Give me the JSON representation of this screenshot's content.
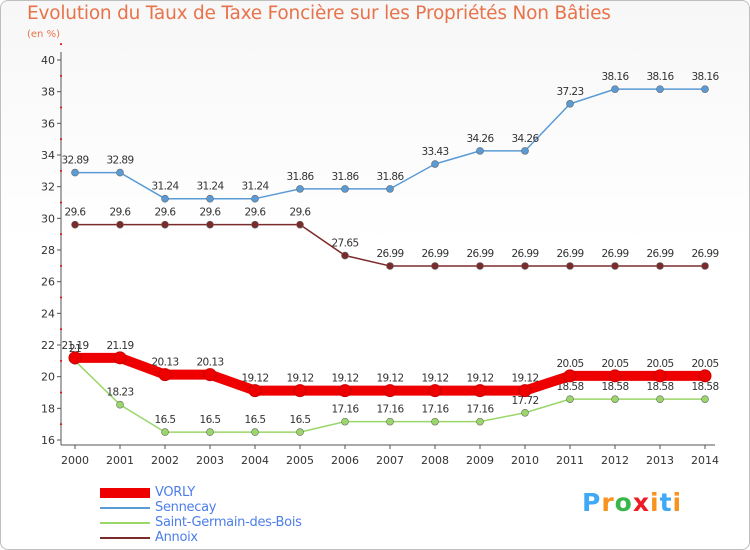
{
  "header": {
    "title": "Evolution du Taux de Taxe Foncière sur les Propriétés Non Bâties",
    "subtitle": "(en %)"
  },
  "logo": {
    "letters": [
      "P",
      "r",
      "o",
      "x",
      "i",
      "t",
      "i"
    ],
    "colors": [
      "#3fa9f5",
      "#f7931e",
      "#39b54a",
      "#ed1c24",
      "#f7931e",
      "#3fa9f5",
      "#f7931e"
    ]
  },
  "chart_data": {
    "type": "line",
    "title": "Evolution du Taux de Taxe Foncière sur les Propriétés Non Bâties",
    "ylabel": "(en %)",
    "xlabel": "",
    "x": [
      "2000",
      "2001",
      "2002",
      "2003",
      "2004",
      "2005",
      "2006",
      "2007",
      "2008",
      "2009",
      "2010",
      "2011",
      "2012",
      "2013",
      "2014"
    ],
    "ylim": [
      16,
      40
    ],
    "yticks": [
      "16",
      "18",
      "20",
      "22",
      "24",
      "26",
      "28",
      "30",
      "32",
      "34",
      "36",
      "38",
      "40"
    ],
    "grid": false,
    "legend_position": "bottom-left",
    "series": [
      {
        "name": "Sennecay",
        "color": "#5b9bd5",
        "values": [
          32.89,
          32.89,
          31.24,
          31.24,
          31.24,
          31.86,
          31.86,
          31.86,
          33.43,
          34.26,
          34.26,
          37.23,
          38.16,
          38.16,
          38.16
        ],
        "labels": [
          "32.89",
          "32.89",
          "31.24",
          "31.24",
          "31.24",
          "31.86",
          "31.86",
          "31.86",
          "33.43",
          "34.26",
          "34.26",
          "37.23",
          "38.16",
          "38.16",
          "38.16"
        ]
      },
      {
        "name": "Annoix",
        "color": "#7b2b2b",
        "values": [
          29.6,
          29.6,
          29.6,
          29.6,
          29.6,
          29.6,
          27.65,
          26.99,
          26.99,
          26.99,
          26.99,
          26.99,
          26.99,
          26.99,
          26.99
        ],
        "labels": [
          "29.6",
          "29.6",
          "29.6",
          "29.6",
          "29.6",
          "29.6",
          "27.65",
          "26.99",
          "26.99",
          "26.99",
          "26.99",
          "26.99",
          "26.99",
          "26.99",
          "26.99"
        ]
      },
      {
        "name": "Saint-Germain-des-Bois",
        "color": "#9ad66a",
        "values": [
          21,
          18.23,
          16.5,
          16.5,
          16.5,
          16.5,
          17.16,
          17.16,
          17.16,
          17.16,
          17.72,
          18.58,
          18.58,
          18.58,
          18.58
        ],
        "labels": [
          "21",
          "18.23",
          "16.5",
          "16.5",
          "16.5",
          "16.5",
          "17.16",
          "17.16",
          "17.16",
          "17.16",
          "17.72",
          "18.58",
          "18.58",
          "18.58",
          "18.58"
        ]
      },
      {
        "name": "VORLY",
        "color": "#ee0000",
        "values": [
          21.19,
          21.19,
          20.13,
          20.13,
          19.12,
          19.12,
          19.12,
          19.12,
          19.12,
          19.12,
          19.12,
          20.05,
          20.05,
          20.05,
          20.05
        ],
        "labels": [
          "21.19",
          "21.19",
          "20.13",
          "20.13",
          "19.12",
          "19.12",
          "19.12",
          "19.12",
          "19.12",
          "19.12",
          "19.12",
          "20.05",
          "20.05",
          "20.05",
          "20.05"
        ]
      }
    ],
    "legend": [
      "VORLY",
      "Sennecay",
      "Saint-Germain-des-Bois",
      "Annoix"
    ]
  }
}
